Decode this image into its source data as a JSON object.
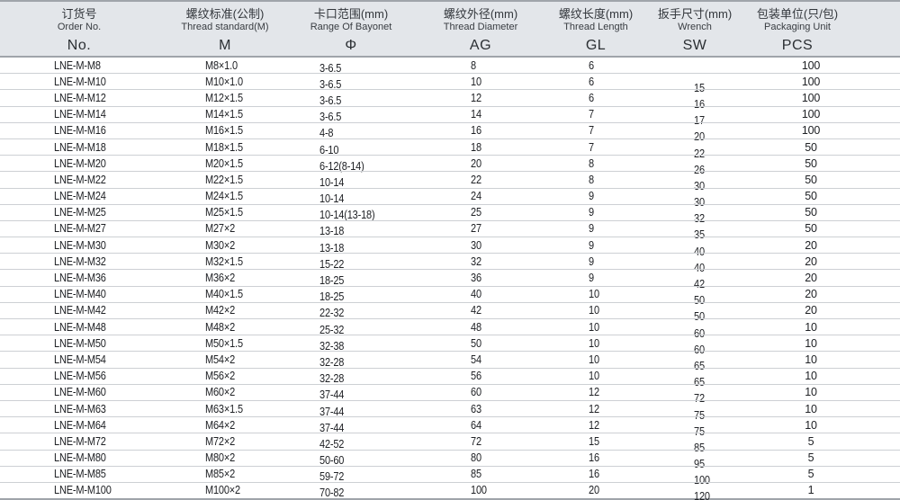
{
  "table": {
    "columns": [
      {
        "zh": "订货号",
        "en": "Order No.",
        "code": "No."
      },
      {
        "zh": "螺纹标准(公制)",
        "en": "Thread standard(M)",
        "code": "M"
      },
      {
        "zh": "卡口范围(mm)",
        "en": "Range Of Bayonet",
        "code": "Φ"
      },
      {
        "zh": "螺纹外径(mm)",
        "en": "Thread Diameter",
        "code": "AG"
      },
      {
        "zh": "螺纹长度(mm)",
        "en": "Thread Length",
        "code": "GL"
      },
      {
        "zh": "扳手尺寸(mm)",
        "en": "Wrench",
        "code": "SW"
      },
      {
        "zh": "包装单位(只/包)",
        "en": "Packaging Unit",
        "code": "PCS"
      }
    ],
    "rows": [
      {
        "no": "LNE-M-M8",
        "m": "M8×1.0",
        "phi": "3-6.5",
        "ag": "8",
        "gl": "6",
        "sw": "",
        "pcs": "100"
      },
      {
        "no": "LNE-M-M10",
        "m": "M10×1.0",
        "phi": "3-6.5",
        "ag": "10",
        "gl": "6",
        "sw": "15",
        "pcs": "100"
      },
      {
        "no": "LNE-M-M12",
        "m": "M12×1.5",
        "phi": "3-6.5",
        "ag": "12",
        "gl": "6",
        "sw": "16",
        "pcs": "100"
      },
      {
        "no": "LNE-M-M14",
        "m": "M14×1.5",
        "phi": "3-6.5",
        "ag": "14",
        "gl": "7",
        "sw": "17",
        "pcs": "100"
      },
      {
        "no": "LNE-M-M16",
        "m": "M16×1.5",
        "phi": "4-8",
        "ag": "16",
        "gl": "7",
        "sw": "20",
        "pcs": "100"
      },
      {
        "no": "LNE-M-M18",
        "m": "M18×1.5",
        "phi": "6-10",
        "ag": "18",
        "gl": "7",
        "sw": "22",
        "pcs": "50"
      },
      {
        "no": "LNE-M-M20",
        "m": "M20×1.5",
        "phi": "6-12(8-14)",
        "ag": "20",
        "gl": "8",
        "sw": "26",
        "pcs": "50"
      },
      {
        "no": "LNE-M-M22",
        "m": "M22×1.5",
        "phi": "10-14",
        "ag": "22",
        "gl": "8",
        "sw": "30",
        "pcs": "50"
      },
      {
        "no": "LNE-M-M24",
        "m": "M24×1.5",
        "phi": "10-14",
        "ag": "24",
        "gl": "9",
        "sw": "30",
        "pcs": "50"
      },
      {
        "no": "LNE-M-M25",
        "m": "M25×1.5",
        "phi": "10-14(13-18)",
        "ag": "25",
        "gl": "9",
        "sw": "32",
        "pcs": "50"
      },
      {
        "no": "LNE-M-M27",
        "m": "M27×2",
        "phi": "13-18",
        "ag": "27",
        "gl": "9",
        "sw": "35",
        "pcs": "50"
      },
      {
        "no": "LNE-M-M30",
        "m": "M30×2",
        "phi": "13-18",
        "ag": "30",
        "gl": "9",
        "sw": "40",
        "pcs": "20"
      },
      {
        "no": "LNE-M-M32",
        "m": "M32×1.5",
        "phi": "15-22",
        "ag": "32",
        "gl": "9",
        "sw": "40",
        "pcs": "20"
      },
      {
        "no": "LNE-M-M36",
        "m": "M36×2",
        "phi": "18-25",
        "ag": "36",
        "gl": "9",
        "sw": "42",
        "pcs": "20"
      },
      {
        "no": "LNE-M-M40",
        "m": "M40×1.5",
        "phi": "18-25",
        "ag": "40",
        "gl": "10",
        "sw": "50",
        "pcs": "20"
      },
      {
        "no": "LNE-M-M42",
        "m": "M42×2",
        "phi": "22-32",
        "ag": "42",
        "gl": "10",
        "sw": "50",
        "pcs": "20"
      },
      {
        "no": "LNE-M-M48",
        "m": "M48×2",
        "phi": "25-32",
        "ag": "48",
        "gl": "10",
        "sw": "60",
        "pcs": "10"
      },
      {
        "no": "LNE-M-M50",
        "m": "M50×1.5",
        "phi": "32-38",
        "ag": "50",
        "gl": "10",
        "sw": "60",
        "pcs": "10"
      },
      {
        "no": "LNE-M-M54",
        "m": "M54×2",
        "phi": "32-28",
        "ag": "54",
        "gl": "10",
        "sw": "65",
        "pcs": "10"
      },
      {
        "no": "LNE-M-M56",
        "m": "M56×2",
        "phi": "32-28",
        "ag": "56",
        "gl": "10",
        "sw": "65",
        "pcs": "10"
      },
      {
        "no": "LNE-M-M60",
        "m": "M60×2",
        "phi": "37-44",
        "ag": "60",
        "gl": "12",
        "sw": "72",
        "pcs": "10"
      },
      {
        "no": "LNE-M-M63",
        "m": "M63×1.5",
        "phi": "37-44",
        "ag": "63",
        "gl": "12",
        "sw": "75",
        "pcs": "10"
      },
      {
        "no": "LNE-M-M64",
        "m": "M64×2",
        "phi": "37-44",
        "ag": "64",
        "gl": "12",
        "sw": "75",
        "pcs": "10"
      },
      {
        "no": "LNE-M-M72",
        "m": "M72×2",
        "phi": "42-52",
        "ag": "72",
        "gl": "15",
        "sw": "85",
        "pcs": "5"
      },
      {
        "no": "LNE-M-M80",
        "m": "M80×2",
        "phi": "50-60",
        "ag": "80",
        "gl": "16",
        "sw": "95",
        "pcs": "5"
      },
      {
        "no": "LNE-M-M85",
        "m": "M85×2",
        "phi": "59-72",
        "ag": "85",
        "gl": "16",
        "sw": "100",
        "pcs": "5"
      },
      {
        "no": "LNE-M-M100",
        "m": "M100×2",
        "phi": "70-82",
        "ag": "100",
        "gl": "20",
        "sw": "120",
        "pcs": "1"
      }
    ],
    "colors": {
      "header_bg": "#e3e6ea",
      "strong_border": "#9fa4aa",
      "row_border": "#cdd0d4",
      "text": "#202226"
    }
  }
}
